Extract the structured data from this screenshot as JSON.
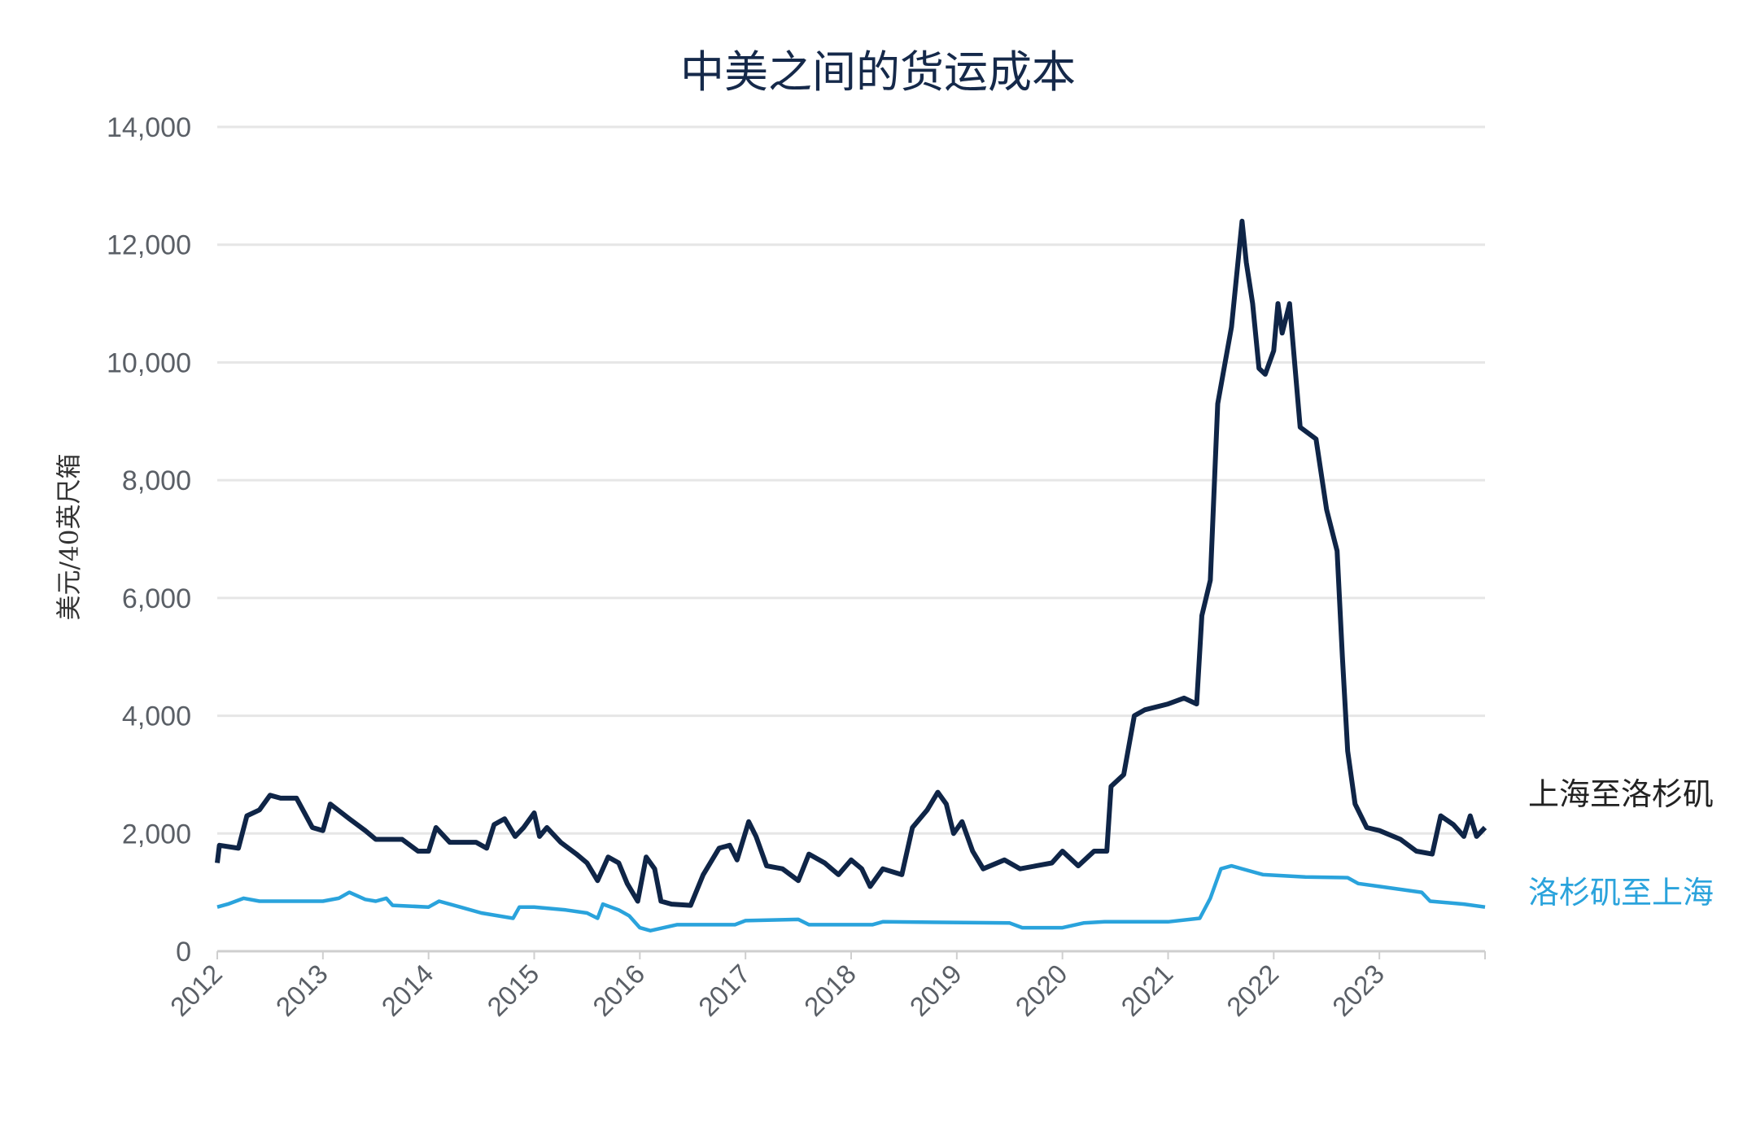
{
  "chart_data": {
    "type": "line",
    "title": "中美之间的货运成本",
    "xlabel": "",
    "ylabel": "美元/40英尺箱",
    "xlim": [
      2012,
      2024
    ],
    "ylim": [
      0,
      14000
    ],
    "x_ticks": [
      "2012",
      "2013",
      "2014",
      "2015",
      "2016",
      "2017",
      "2018",
      "2019",
      "2020",
      "2021",
      "2022",
      "2023"
    ],
    "y_ticks": [
      "0",
      "2,000",
      "4,000",
      "6,000",
      "8,000",
      "10,000",
      "12,000",
      "14,000"
    ],
    "grid": true,
    "legend_placement": "right",
    "series": [
      {
        "name": "上海至洛杉矶",
        "color": "#0f2547",
        "points": [
          [
            2012.0,
            1500
          ],
          [
            2012.02,
            1800
          ],
          [
            2012.2,
            1750
          ],
          [
            2012.28,
            2300
          ],
          [
            2012.4,
            2400
          ],
          [
            2012.5,
            2650
          ],
          [
            2012.6,
            2600
          ],
          [
            2012.75,
            2600
          ],
          [
            2012.9,
            2100
          ],
          [
            2013.0,
            2050
          ],
          [
            2013.07,
            2500
          ],
          [
            2013.25,
            2250
          ],
          [
            2013.4,
            2050
          ],
          [
            2013.5,
            1900
          ],
          [
            2013.75,
            1900
          ],
          [
            2013.9,
            1700
          ],
          [
            2014.0,
            1700
          ],
          [
            2014.07,
            2100
          ],
          [
            2014.2,
            1850
          ],
          [
            2014.45,
            1850
          ],
          [
            2014.55,
            1750
          ],
          [
            2014.62,
            2150
          ],
          [
            2014.72,
            2250
          ],
          [
            2014.82,
            1950
          ],
          [
            2014.9,
            2100
          ],
          [
            2015.0,
            2350
          ],
          [
            2015.05,
            1950
          ],
          [
            2015.12,
            2100
          ],
          [
            2015.25,
            1850
          ],
          [
            2015.4,
            1650
          ],
          [
            2015.5,
            1500
          ],
          [
            2015.6,
            1200
          ],
          [
            2015.7,
            1600
          ],
          [
            2015.8,
            1500
          ],
          [
            2015.88,
            1150
          ],
          [
            2015.98,
            850
          ],
          [
            2016.06,
            1600
          ],
          [
            2016.14,
            1400
          ],
          [
            2016.2,
            850
          ],
          [
            2016.3,
            800
          ],
          [
            2016.48,
            780
          ],
          [
            2016.6,
            1300
          ],
          [
            2016.75,
            1750
          ],
          [
            2016.85,
            1800
          ],
          [
            2016.92,
            1550
          ],
          [
            2017.03,
            2200
          ],
          [
            2017.1,
            1950
          ],
          [
            2017.2,
            1450
          ],
          [
            2017.35,
            1400
          ],
          [
            2017.5,
            1200
          ],
          [
            2017.6,
            1650
          ],
          [
            2017.75,
            1500
          ],
          [
            2017.88,
            1300
          ],
          [
            2018.0,
            1550
          ],
          [
            2018.1,
            1400
          ],
          [
            2018.18,
            1100
          ],
          [
            2018.3,
            1400
          ],
          [
            2018.48,
            1300
          ],
          [
            2018.58,
            2100
          ],
          [
            2018.72,
            2400
          ],
          [
            2018.82,
            2700
          ],
          [
            2018.9,
            2500
          ],
          [
            2018.97,
            2000
          ],
          [
            2019.05,
            2200
          ],
          [
            2019.15,
            1700
          ],
          [
            2019.25,
            1400
          ],
          [
            2019.45,
            1550
          ],
          [
            2019.6,
            1400
          ],
          [
            2019.75,
            1450
          ],
          [
            2019.9,
            1500
          ],
          [
            2020.0,
            1700
          ],
          [
            2020.15,
            1450
          ],
          [
            2020.3,
            1700
          ],
          [
            2020.42,
            1700
          ],
          [
            2020.46,
            2800
          ],
          [
            2020.58,
            3000
          ],
          [
            2020.68,
            4000
          ],
          [
            2020.78,
            4100
          ],
          [
            2021.0,
            4200
          ],
          [
            2021.15,
            4300
          ],
          [
            2021.27,
            4200
          ],
          [
            2021.32,
            5700
          ],
          [
            2021.4,
            6300
          ],
          [
            2021.47,
            9300
          ],
          [
            2021.52,
            9800
          ],
          [
            2021.6,
            10600
          ],
          [
            2021.65,
            11500
          ],
          [
            2021.7,
            12400
          ],
          [
            2021.74,
            11700
          ],
          [
            2021.8,
            11000
          ],
          [
            2021.86,
            9900
          ],
          [
            2021.92,
            9800
          ],
          [
            2022.0,
            10200
          ],
          [
            2022.04,
            11000
          ],
          [
            2022.08,
            10500
          ],
          [
            2022.15,
            11000
          ],
          [
            2022.25,
            8900
          ],
          [
            2022.4,
            8700
          ],
          [
            2022.5,
            7500
          ],
          [
            2022.6,
            6800
          ],
          [
            2022.65,
            5000
          ],
          [
            2022.7,
            3400
          ],
          [
            2022.77,
            2500
          ],
          [
            2022.88,
            2100
          ],
          [
            2023.0,
            2050
          ],
          [
            2023.2,
            1900
          ],
          [
            2023.35,
            1700
          ],
          [
            2023.5,
            1650
          ],
          [
            2023.58,
            2300
          ],
          [
            2023.7,
            2150
          ],
          [
            2023.8,
            1950
          ],
          [
            2023.86,
            2300
          ],
          [
            2023.92,
            1950
          ],
          [
            2024.0,
            2100
          ]
        ]
      },
      {
        "name": "洛杉矶至上海",
        "color": "#2aa3dc",
        "points": [
          [
            2012.0,
            750
          ],
          [
            2012.1,
            800
          ],
          [
            2012.25,
            900
          ],
          [
            2012.4,
            850
          ],
          [
            2012.7,
            850
          ],
          [
            2013.0,
            850
          ],
          [
            2013.15,
            900
          ],
          [
            2013.25,
            1000
          ],
          [
            2013.4,
            880
          ],
          [
            2013.5,
            850
          ],
          [
            2013.6,
            900
          ],
          [
            2013.66,
            780
          ],
          [
            2014.0,
            750
          ],
          [
            2014.1,
            850
          ],
          [
            2014.3,
            750
          ],
          [
            2014.5,
            650
          ],
          [
            2014.8,
            560
          ],
          [
            2014.86,
            750
          ],
          [
            2015.0,
            750
          ],
          [
            2015.3,
            700
          ],
          [
            2015.5,
            650
          ],
          [
            2015.6,
            560
          ],
          [
            2015.65,
            800
          ],
          [
            2015.8,
            700
          ],
          [
            2015.9,
            600
          ],
          [
            2016.0,
            400
          ],
          [
            2016.1,
            350
          ],
          [
            2016.35,
            450
          ],
          [
            2016.9,
            450
          ],
          [
            2017.0,
            520
          ],
          [
            2017.5,
            540
          ],
          [
            2017.6,
            450
          ],
          [
            2018.2,
            450
          ],
          [
            2018.3,
            500
          ],
          [
            2019.5,
            480
          ],
          [
            2019.62,
            400
          ],
          [
            2020.0,
            400
          ],
          [
            2020.2,
            480
          ],
          [
            2020.4,
            500
          ],
          [
            2021.0,
            500
          ],
          [
            2021.3,
            560
          ],
          [
            2021.4,
            900
          ],
          [
            2021.5,
            1400
          ],
          [
            2021.6,
            1450
          ],
          [
            2021.9,
            1300
          ],
          [
            2022.3,
            1260
          ],
          [
            2022.7,
            1250
          ],
          [
            2022.8,
            1150
          ],
          [
            2023.0,
            1100
          ],
          [
            2023.4,
            1000
          ],
          [
            2023.48,
            850
          ],
          [
            2023.8,
            800
          ],
          [
            2024.0,
            750
          ]
        ]
      }
    ]
  }
}
